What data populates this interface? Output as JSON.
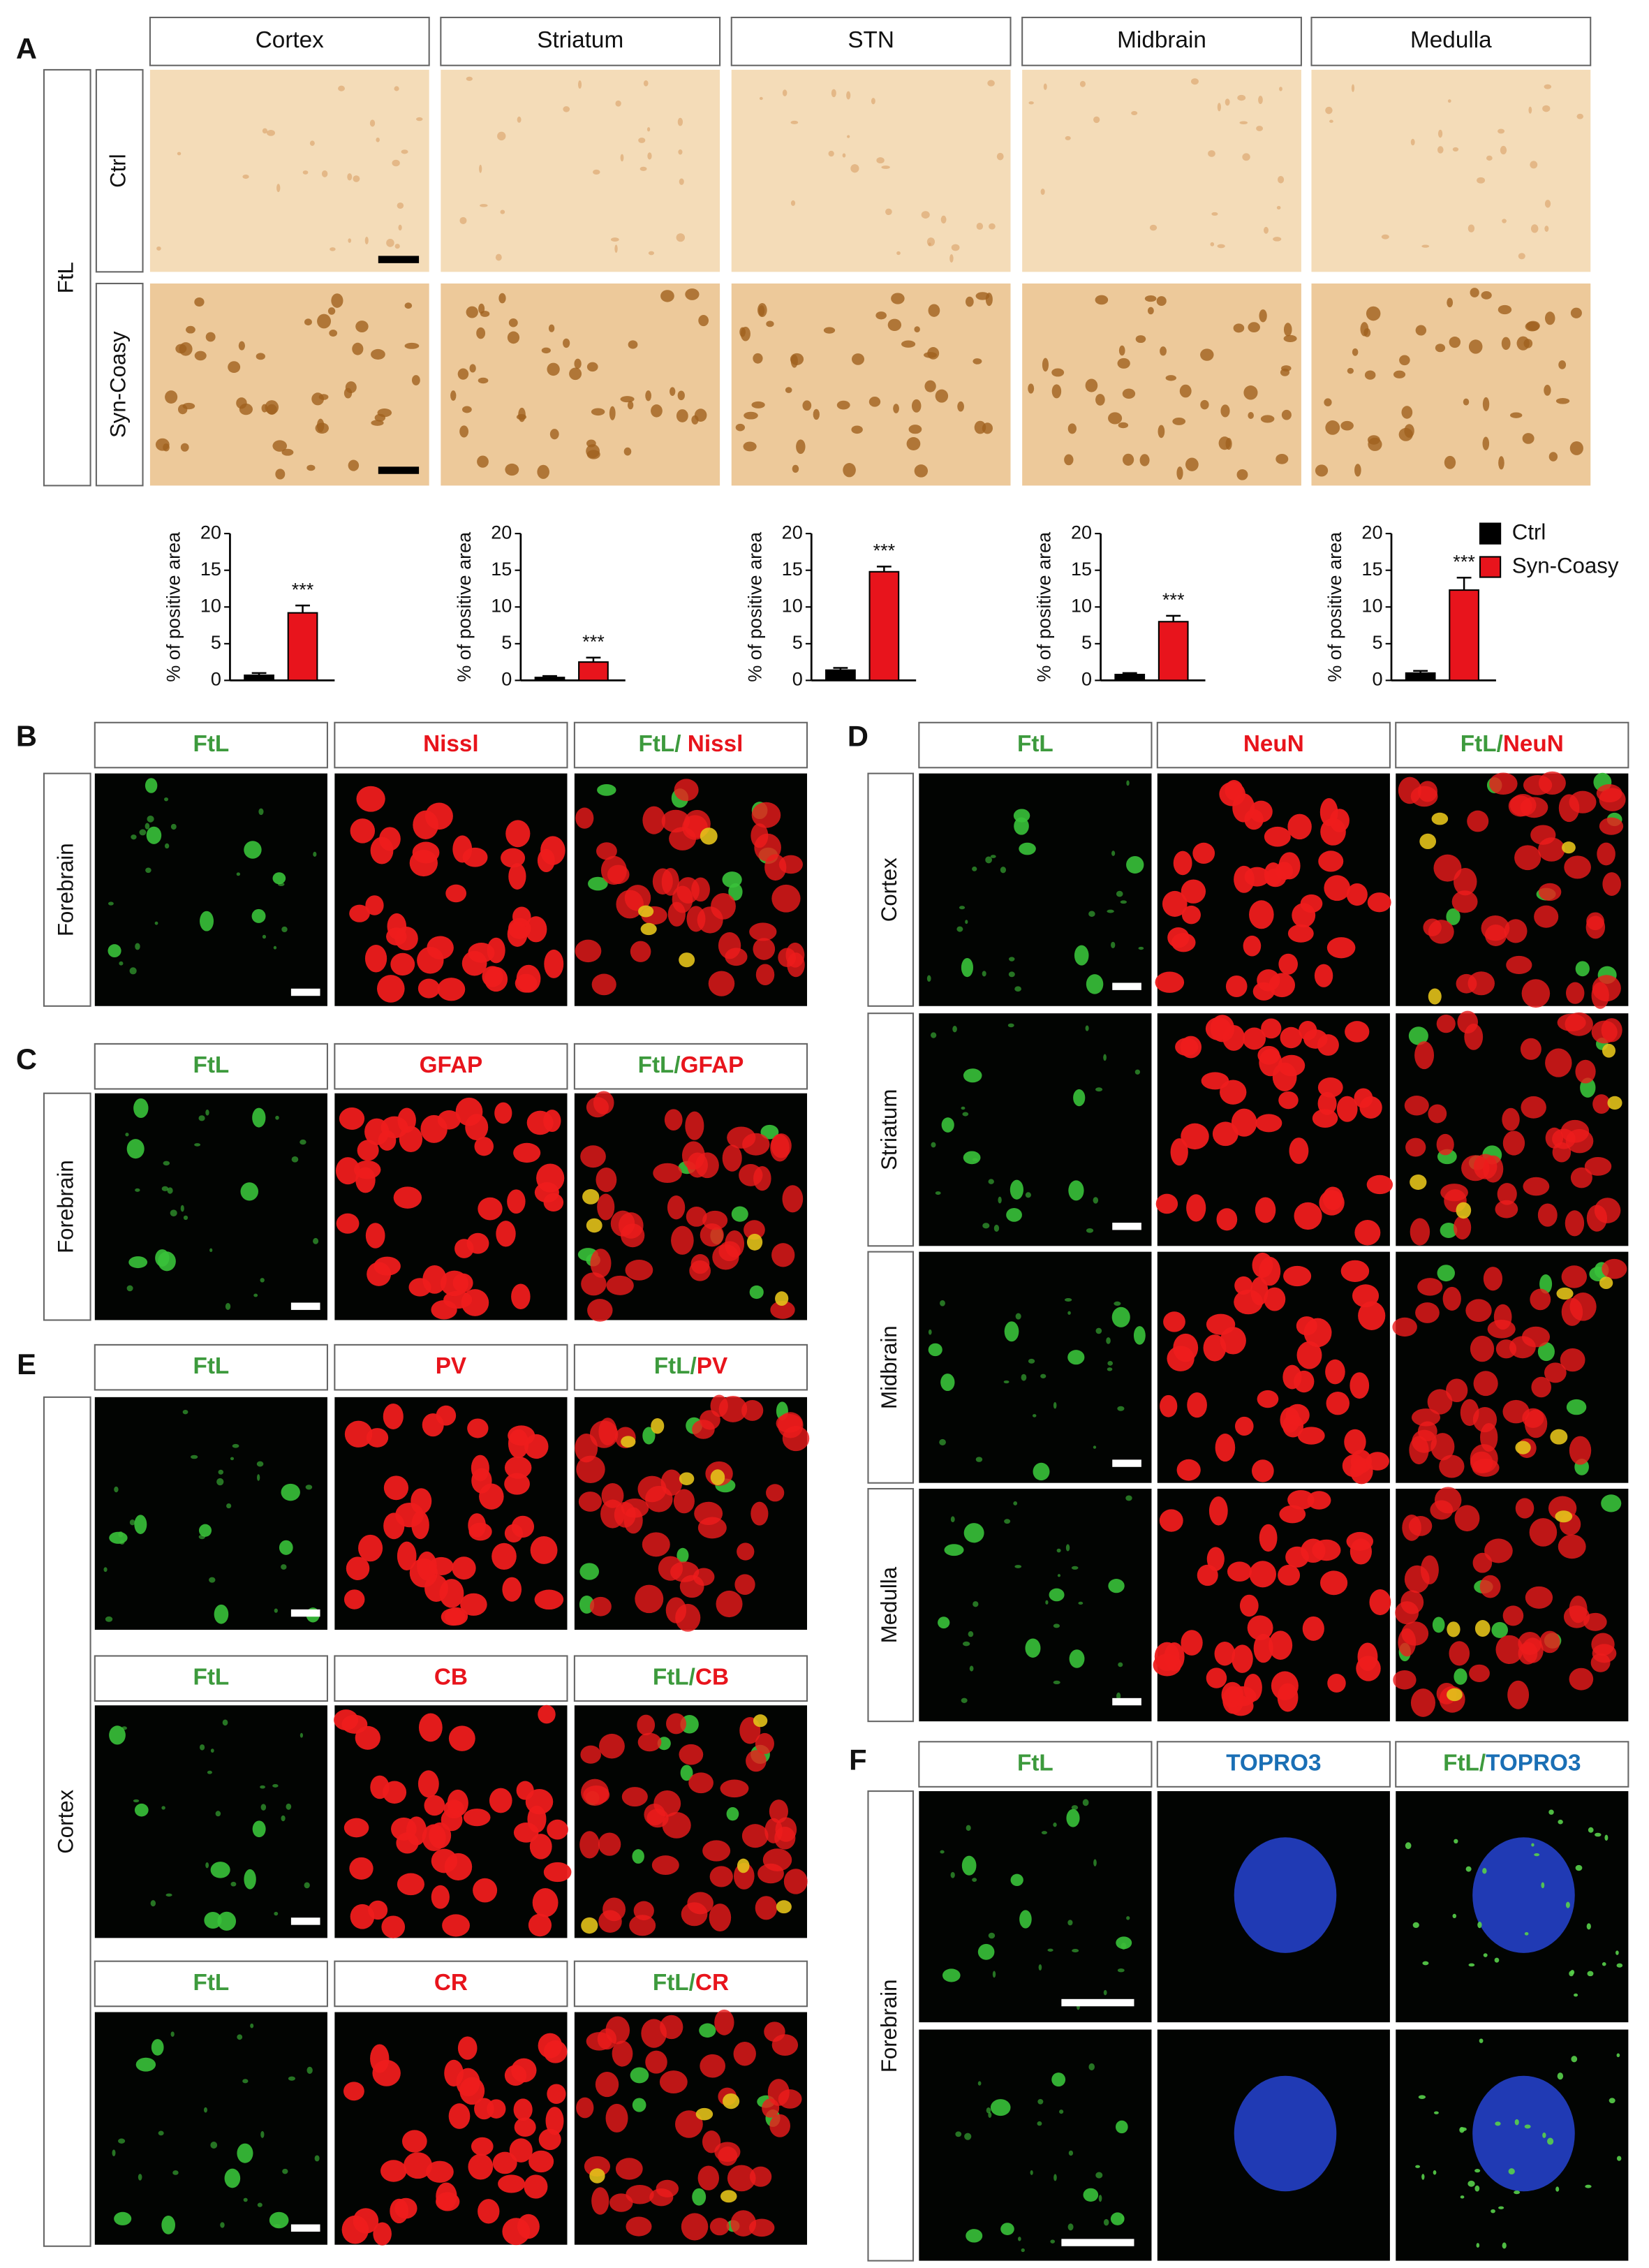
{
  "panel_a": {
    "label": "A",
    "side_label": "FtL",
    "columns": [
      "Cortex",
      "Striatum",
      "STN",
      "Midbrain",
      "Medulla"
    ],
    "rows": [
      "Ctrl",
      "Syn-Coasy"
    ]
  },
  "chart_data": [
    {
      "type": "bar",
      "ylabel": "% of positive area",
      "ylim": [
        0,
        20
      ],
      "yticks": [
        0,
        5,
        10,
        15,
        20
      ],
      "annotation": "***",
      "series": [
        {
          "color": "#000000",
          "values": [
            0.7
          ],
          "errors": [
            0.3
          ]
        },
        {
          "color": "#e8141c",
          "values": [
            9.2
          ],
          "errors": [
            1.0
          ]
        }
      ]
    },
    {
      "type": "bar",
      "ylabel": "% of positive area",
      "ylim": [
        0,
        20
      ],
      "yticks": [
        0,
        5,
        10,
        15,
        20
      ],
      "annotation": "***",
      "series": [
        {
          "color": "#000000",
          "values": [
            0.4
          ],
          "errors": [
            0.2
          ]
        },
        {
          "color": "#e8141c",
          "values": [
            2.5
          ],
          "errors": [
            0.6
          ]
        }
      ]
    },
    {
      "type": "bar",
      "ylabel": "% of positive area",
      "ylim": [
        0,
        20
      ],
      "yticks": [
        0,
        5,
        10,
        15,
        20
      ],
      "annotation": "***",
      "series": [
        {
          "color": "#000000",
          "values": [
            1.4
          ],
          "errors": [
            0.3
          ]
        },
        {
          "color": "#e8141c",
          "values": [
            14.8
          ],
          "errors": [
            0.7
          ]
        }
      ]
    },
    {
      "type": "bar",
      "ylabel": "% of positive area",
      "ylim": [
        0,
        20
      ],
      "yticks": [
        0,
        5,
        10,
        15,
        20
      ],
      "annotation": "***",
      "series": [
        {
          "color": "#000000",
          "values": [
            0.8
          ],
          "errors": [
            0.2
          ]
        },
        {
          "color": "#e8141c",
          "values": [
            8.0
          ],
          "errors": [
            0.8
          ]
        }
      ]
    },
    {
      "type": "bar",
      "ylabel": "% of positive area",
      "ylim": [
        0,
        20
      ],
      "yticks": [
        0,
        5,
        10,
        15,
        20
      ],
      "annotation": "***",
      "legend": "right",
      "series": [
        {
          "name": "Ctrl",
          "color": "#000000",
          "values": [
            1.0
          ],
          "errors": [
            0.3
          ]
        },
        {
          "name": "Syn-Coasy",
          "color": "#e8141c",
          "values": [
            12.3
          ],
          "errors": [
            1.7
          ]
        }
      ]
    }
  ],
  "panel_b": {
    "label": "B",
    "row_labels": [
      "Forebrain"
    ],
    "headers": [
      [
        {
          "text": "FtL",
          "color": "#3d9a3d"
        }
      ],
      [
        {
          "text": "Nissl",
          "color": "#e8141c"
        }
      ],
      [
        {
          "text": "FtL/ ",
          "color": "#3d9a3d"
        },
        {
          "text": "Nissl",
          "color": "#e8141c"
        }
      ]
    ]
  },
  "panel_c": {
    "label": "C",
    "row_labels": [
      "Forebrain"
    ],
    "headers": [
      [
        {
          "text": "FtL",
          "color": "#3d9a3d"
        }
      ],
      [
        {
          "text": "GFAP",
          "color": "#e8141c"
        }
      ],
      [
        {
          "text": "FtL/",
          "color": "#3d9a3d"
        },
        {
          "text": "GFAP",
          "color": "#e8141c"
        }
      ]
    ]
  },
  "panel_d": {
    "label": "D",
    "row_labels": [
      "Cortex",
      "Striatum",
      "Midbrain",
      "Medulla"
    ],
    "headers": [
      [
        {
          "text": "FtL",
          "color": "#3d9a3d"
        }
      ],
      [
        {
          "text": "NeuN",
          "color": "#e8141c"
        }
      ],
      [
        {
          "text": "FtL/",
          "color": "#3d9a3d"
        },
        {
          "text": "NeuN",
          "color": "#e8141c"
        }
      ]
    ]
  },
  "panel_e": {
    "label": "E",
    "side_label": "Cortex",
    "blocks": [
      [
        [
          {
            "text": "FtL",
            "color": "#3d9a3d"
          }
        ],
        [
          {
            "text": "PV",
            "color": "#e8141c"
          }
        ],
        [
          {
            "text": "FtL/",
            "color": "#3d9a3d"
          },
          {
            "text": "PV",
            "color": "#e8141c"
          }
        ]
      ],
      [
        [
          {
            "text": "FtL",
            "color": "#3d9a3d"
          }
        ],
        [
          {
            "text": "CB",
            "color": "#e8141c"
          }
        ],
        [
          {
            "text": "FtL/",
            "color": "#3d9a3d"
          },
          {
            "text": "CB",
            "color": "#e8141c"
          }
        ]
      ],
      [
        [
          {
            "text": "FtL",
            "color": "#3d9a3d"
          }
        ],
        [
          {
            "text": "CR",
            "color": "#e8141c"
          }
        ],
        [
          {
            "text": "FtL/",
            "color": "#3d9a3d"
          },
          {
            "text": "CR",
            "color": "#e8141c"
          }
        ]
      ]
    ]
  },
  "panel_f": {
    "label": "F",
    "side_label": "Forebrain",
    "headers": [
      [
        {
          "text": "FtL",
          "color": "#3d9a3d"
        }
      ],
      [
        {
          "text": "TOPRO3",
          "color": "#1a6fb5"
        }
      ],
      [
        {
          "text": "FtL/",
          "color": "#3d9a3d"
        },
        {
          "text": "TOPRO3",
          "color": "#1a6fb5"
        }
      ]
    ]
  }
}
